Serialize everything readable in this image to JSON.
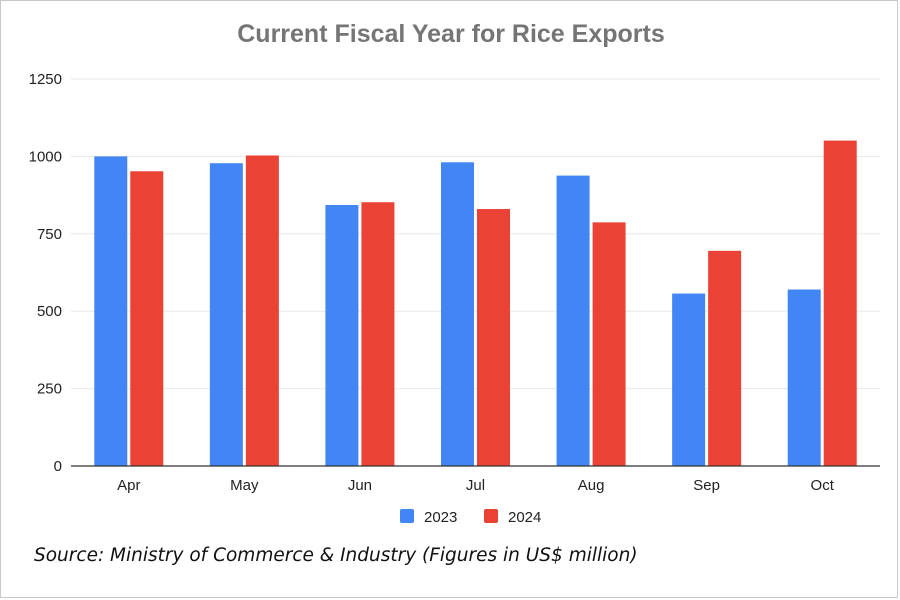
{
  "colors": {
    "series_2023": "#4285f4",
    "series_2024": "#ea4335",
    "title": "#757575",
    "axis_text": "#222222",
    "grid": "#e8e8e8",
    "baseline": "#333333"
  },
  "source_note": "Source: Ministry of Commerce & Industry (Figures in US$ million)",
  "chart_data": {
    "type": "bar",
    "title": "Current Fiscal Year for Rice Exports",
    "xlabel": "",
    "ylabel": "",
    "categories": [
      "Apr",
      "May",
      "Jun",
      "Jul",
      "Aug",
      "Sep",
      "Oct"
    ],
    "series": [
      {
        "name": "2023",
        "values": [
          1000,
          978,
          843,
          981,
          938,
          557,
          570
        ]
      },
      {
        "name": "2024",
        "values": [
          952,
          1003,
          852,
          830,
          787,
          695,
          1051
        ]
      }
    ],
    "ylim": [
      0,
      1250
    ],
    "yticks": [
      "0",
      "250",
      "500",
      "750",
      "1000",
      "1250"
    ],
    "grid": true,
    "legend_position": "bottom"
  }
}
